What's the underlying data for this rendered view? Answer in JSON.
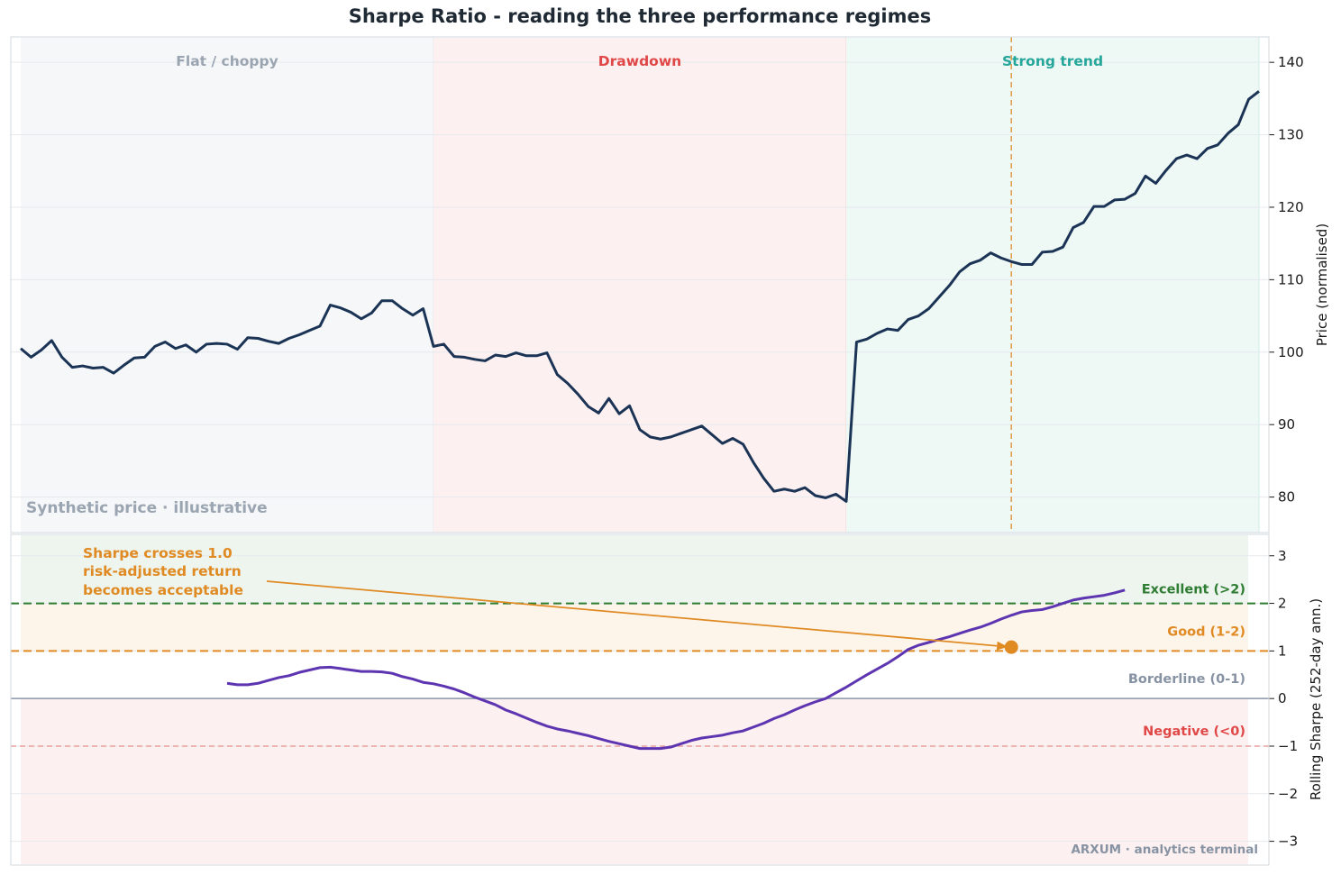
{
  "title": "Sharpe Ratio - reading the three performance regimes",
  "footer": "ARXUM · analytics terminal",
  "colors": {
    "price_line": "#1b3456",
    "sharpe_line": "#5e35b1",
    "flat_bg": "#f5f7f9",
    "drawdown_bg": "#fdf0f0",
    "trend_bg": "#eef8f5",
    "excellent": "#2e7d32",
    "good": "#e08a24",
    "borderline": "#8793a3",
    "negative": "#e04848",
    "trend_text": "#26a69a",
    "flat_text": "#9aa5b1"
  },
  "chart_data": [
    {
      "type": "line",
      "panel": "price",
      "ylabel": "Price (normalised)",
      "ylim": [
        75.1,
        143.5
      ],
      "xlim": [
        0,
        120
      ],
      "yticks": [
        80,
        90,
        100,
        110,
        120,
        130,
        140
      ],
      "grid": true,
      "note": "Synthetic price · illustrative",
      "regimes": [
        {
          "label": "Flat / choppy",
          "x_start": 0,
          "x_end": 40
        },
        {
          "label": "Drawdown",
          "x_start": 40,
          "x_end": 80
        },
        {
          "label": "Strong trend",
          "x_start": 80,
          "x_end": 120
        }
      ],
      "marker_x": 96,
      "series": [
        {
          "values": [
            100.5,
            99.3,
            100.3,
            101.6,
            99.3,
            97.9,
            98.1,
            97.8,
            97.9,
            97.1,
            98.2,
            99.2,
            99.3,
            100.8,
            101.4,
            100.5,
            101.0,
            100.0,
            101.1,
            101.2,
            101.1,
            100.4,
            102.0,
            101.9,
            101.5,
            101.2,
            101.9,
            102.4,
            103.0,
            103.6,
            106.5,
            106.1,
            105.5,
            104.6,
            105.4,
            107.1,
            107.1,
            106.0,
            105.1,
            106.0,
            100.8,
            101.1,
            99.4,
            99.3,
            99.0,
            98.8,
            99.6,
            99.4,
            99.9,
            99.5,
            99.5,
            99.9,
            96.9,
            95.7,
            94.2,
            92.5,
            91.6,
            93.6,
            91.5,
            92.6,
            89.3,
            88.3,
            88.0,
            88.3,
            88.8,
            89.3,
            89.8,
            88.6,
            87.4,
            88.1,
            87.3,
            84.8,
            82.6,
            80.8,
            81.1,
            80.8,
            81.3,
            80.2,
            79.9,
            80.4,
            79.4,
            101.4,
            101.8,
            102.6,
            103.2,
            103.0,
            104.5,
            105.0,
            106.0,
            107.6,
            109.2,
            111.1,
            112.2,
            112.7,
            113.7,
            113.0,
            112.5,
            112.1,
            112.1,
            113.8,
            113.9,
            114.5,
            117.2,
            117.9,
            120.1,
            120.1,
            121.0,
            121.1,
            121.9,
            124.3,
            123.3,
            125.1,
            126.7,
            127.2,
            126.7,
            128.1,
            128.6,
            130.2,
            131.4,
            134.9,
            136.0
          ]
        }
      ]
    },
    {
      "type": "line",
      "panel": "sharpe",
      "ylabel": "Rolling Sharpe (252-day ann.)",
      "ylim": [
        -3.5,
        3.45
      ],
      "yticks": [
        -3,
        -2,
        -1,
        0,
        1,
        2,
        3
      ],
      "grid": true,
      "bands": [
        {
          "label": "Excellent (>2)",
          "threshold": 2
        },
        {
          "label": "Good (1-2)",
          "threshold": 1
        },
        {
          "label": "Borderline (0-1)",
          "threshold": 0
        },
        {
          "label": "Negative (<0)",
          "threshold": -1
        }
      ],
      "annotation": {
        "lines": [
          "Sharpe crosses 1.0",
          "risk-adjusted return",
          "becomes acceptable"
        ],
        "point": {
          "x": 96,
          "y": 1.08
        }
      },
      "series": [
        {
          "x_start": 20,
          "values": [
            0.32,
            0.29,
            0.29,
            0.32,
            0.38,
            0.44,
            0.48,
            0.55,
            0.6,
            0.65,
            0.66,
            0.63,
            0.6,
            0.57,
            0.57,
            0.56,
            0.53,
            0.46,
            0.41,
            0.34,
            0.31,
            0.26,
            0.2,
            0.12,
            0.03,
            -0.05,
            -0.13,
            -0.24,
            -0.32,
            -0.41,
            -0.5,
            -0.58,
            -0.64,
            -0.68,
            -0.73,
            -0.78,
            -0.84,
            -0.9,
            -0.95,
            -1.0,
            -1.05,
            -1.05,
            -1.05,
            -1.02,
            -0.95,
            -0.88,
            -0.83,
            -0.8,
            -0.77,
            -0.72,
            -0.68,
            -0.6,
            -0.52,
            -0.42,
            -0.34,
            -0.24,
            -0.15,
            -0.07,
            0.0,
            0.12,
            0.24,
            0.37,
            0.5,
            0.62,
            0.74,
            0.88,
            1.03,
            1.12,
            1.18,
            1.24,
            1.3,
            1.37,
            1.44,
            1.5,
            1.58,
            1.67,
            1.75,
            1.82,
            1.85,
            1.87,
            1.93,
            2.0,
            2.07,
            2.11,
            2.14,
            2.17,
            2.22,
            2.28
          ]
        }
      ]
    }
  ]
}
